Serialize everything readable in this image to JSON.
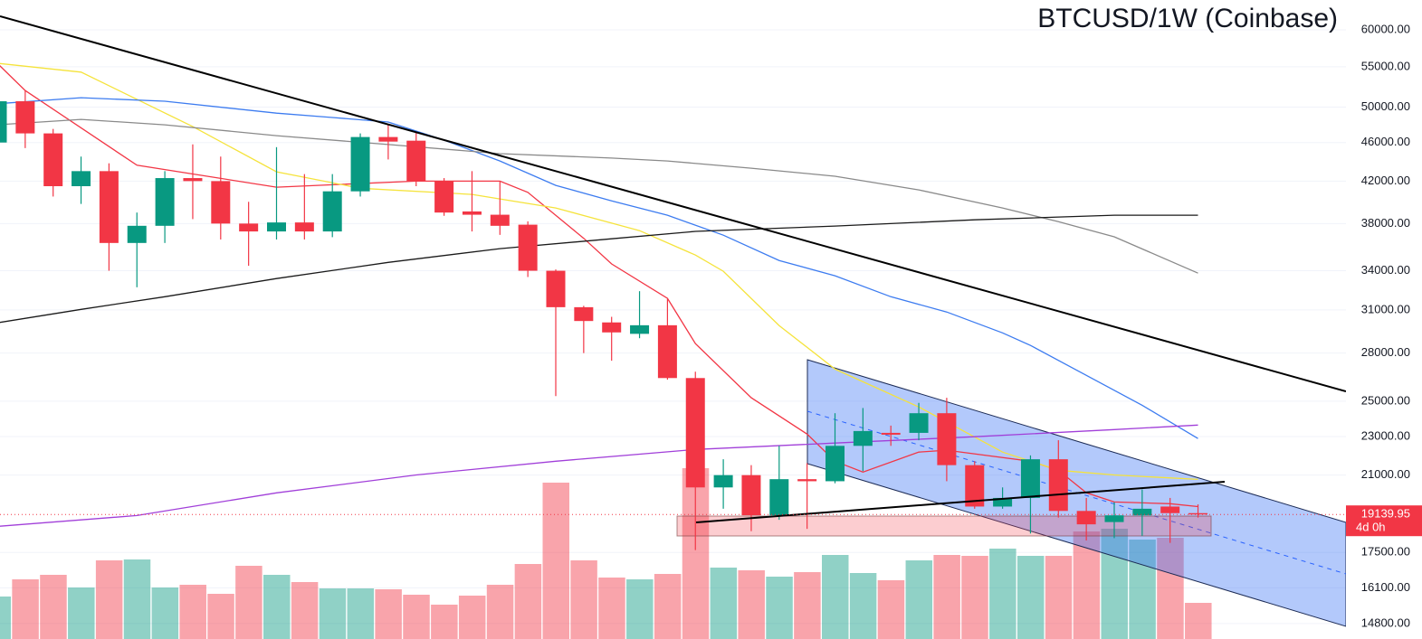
{
  "chart_data": {
    "type": "candlestick",
    "title": "BTCUSD/1W (Coinbase)",
    "log": true,
    "grid": true,
    "ylim": [
      14270,
      64370
    ],
    "yticks": [
      {
        "value": 60000,
        "label": "60000.00"
      },
      {
        "value": 55000,
        "label": "55000.00"
      },
      {
        "value": 50000,
        "label": "50000.00"
      },
      {
        "value": 46000,
        "label": "46000.00"
      },
      {
        "value": 42000,
        "label": "42000.00"
      },
      {
        "value": 38000,
        "label": "38000.00"
      },
      {
        "value": 34000,
        "label": "34000.00"
      },
      {
        "value": 31000,
        "label": "31000.00"
      },
      {
        "value": 28000,
        "label": "28000.00"
      },
      {
        "value": 25000,
        "label": "25000.00"
      },
      {
        "value": 23000,
        "label": "23000.00"
      },
      {
        "value": 21000,
        "label": "21000.00"
      },
      {
        "value": 17500,
        "label": "17500.00"
      },
      {
        "value": 16100,
        "label": "16100.00"
      },
      {
        "value": 14800,
        "label": "14800.00"
      }
    ],
    "up_color": "#089981",
    "down_color": "#f23645",
    "open": [
      46000,
      50700,
      47000,
      41500,
      43000,
      36300,
      37800,
      42300,
      42000,
      38000,
      37300,
      38100,
      37300,
      41000,
      46600,
      46200,
      42000,
      39100,
      38800,
      37900,
      34000,
      31200,
      30100,
      29300,
      29900,
      26400,
      20400,
      21000,
      19100,
      20800,
      20700,
      22500,
      23200,
      23200,
      24300,
      21500,
      19500,
      19900,
      21800,
      19300,
      18800,
      19100,
      19500,
      19200
    ],
    "high": [
      51000,
      52000,
      47500,
      44500,
      43800,
      39000,
      43000,
      45800,
      44500,
      40000,
      45500,
      42700,
      42700,
      47000,
      48000,
      47200,
      42300,
      43000,
      42000,
      38200,
      34100,
      31300,
      30500,
      32400,
      31800,
      26800,
      21800,
      21500,
      22500,
      21600,
      24300,
      24600,
      23600,
      24900,
      25200,
      21700,
      20400,
      22000,
      22800,
      19900,
      19700,
      20300,
      19900,
      19600
    ],
    "low": [
      45500,
      45400,
      40500,
      39800,
      34000,
      32700,
      36300,
      38400,
      36600,
      34400,
      36600,
      36600,
      36800,
      40500,
      44200,
      41500,
      38700,
      37300,
      37000,
      33500,
      25300,
      28000,
      27500,
      29000,
      26300,
      17600,
      19400,
      18400,
      18900,
      18500,
      20600,
      21200,
      22500,
      22800,
      20700,
      19400,
      19400,
      18300,
      19000,
      18000,
      18100,
      18200,
      17900,
      19000
    ],
    "close": [
      50700,
      47000,
      41500,
      43000,
      36300,
      37800,
      42300,
      42000,
      38000,
      37300,
      38100,
      37300,
      41000,
      46600,
      46100,
      42000,
      39000,
      38800,
      37800,
      34000,
      31200,
      30200,
      29400,
      29900,
      26400,
      20400,
      21000,
      19100,
      20800,
      20700,
      22500,
      23300,
      23100,
      24300,
      21500,
      19500,
      19900,
      21800,
      19300,
      18700,
      19100,
      19400,
      19200,
      19140
    ],
    "volume": [
      47,
      66,
      71,
      57,
      87,
      88,
      57,
      60,
      50,
      81,
      71,
      63,
      56,
      56,
      55,
      49,
      38,
      48,
      60,
      83,
      173,
      87,
      68,
      66,
      72,
      189,
      79,
      76,
      69,
      74,
      93,
      73,
      65,
      87,
      93,
      92,
      100,
      92,
      92,
      119,
      122,
      110,
      112,
      40
    ],
    "volume_lim": [
      0,
      400
    ],
    "lines": [
      {
        "color": "#f23645",
        "x": [
          0,
          1,
          5,
          10,
          15,
          18,
          19,
          21,
          22,
          24,
          25,
          27,
          29,
          30,
          31,
          33,
          34,
          37,
          38,
          39,
          40,
          42,
          43
        ],
        "values": [
          55450,
          52000,
          43600,
          41400,
          42000,
          42000,
          40900,
          36700,
          34550,
          31860,
          28630,
          25200,
          23130,
          21700,
          21150,
          22170,
          22270,
          21700,
          21240,
          20140,
          19710,
          19630,
          19500
        ]
      },
      {
        "color": "#f5e33b",
        "x": [
          0,
          3,
          7,
          10,
          13,
          17,
          20,
          23,
          25,
          26,
          28,
          30,
          33,
          36,
          38,
          40,
          43
        ],
        "values": [
          55450,
          54300,
          47760,
          42930,
          41300,
          40700,
          39420,
          37370,
          35280,
          33960,
          29880,
          26960,
          24660,
          22170,
          21240,
          21010,
          20790
        ]
      },
      {
        "color": "#3d7cf0",
        "x": [
          0,
          3,
          6,
          10,
          12,
          14,
          16,
          18,
          20,
          22,
          24,
          26,
          28,
          30,
          32,
          34,
          36,
          37,
          39,
          41,
          43
        ],
        "values": [
          50400,
          51130,
          50700,
          49300,
          48800,
          48280,
          46260,
          44040,
          41580,
          40090,
          38760,
          36970,
          34830,
          33600,
          31980,
          30850,
          29370,
          28510,
          26570,
          24760,
          22890
        ]
      },
      {
        "color": "#8a8a8a",
        "x": [
          0,
          3,
          6,
          10,
          14,
          18,
          22,
          24,
          27,
          30,
          33,
          36,
          38,
          40,
          43
        ],
        "values": [
          47960,
          48580,
          47960,
          46750,
          45780,
          44810,
          44340,
          44040,
          43300,
          42480,
          41140,
          39420,
          38170,
          36830,
          33810
        ]
      },
      {
        "color": "#1a1a1a",
        "x": [
          0,
          3,
          6,
          10,
          14,
          18,
          22,
          25,
          30,
          35,
          40,
          43
        ],
        "values": [
          30070,
          31040,
          31980,
          33380,
          34680,
          35820,
          36660,
          37310,
          37780,
          38340,
          38760,
          38760
        ]
      },
      {
        "color": "#a13fd9",
        "x": [
          0,
          5,
          10,
          15,
          20,
          25,
          30,
          35,
          40,
          43
        ],
        "values": [
          18610,
          19090,
          20140,
          21010,
          21700,
          22310,
          22650,
          22990,
          23380,
          23630
        ]
      }
    ],
    "last_price": 19139.95,
    "countdown": "4d 0h"
  }
}
